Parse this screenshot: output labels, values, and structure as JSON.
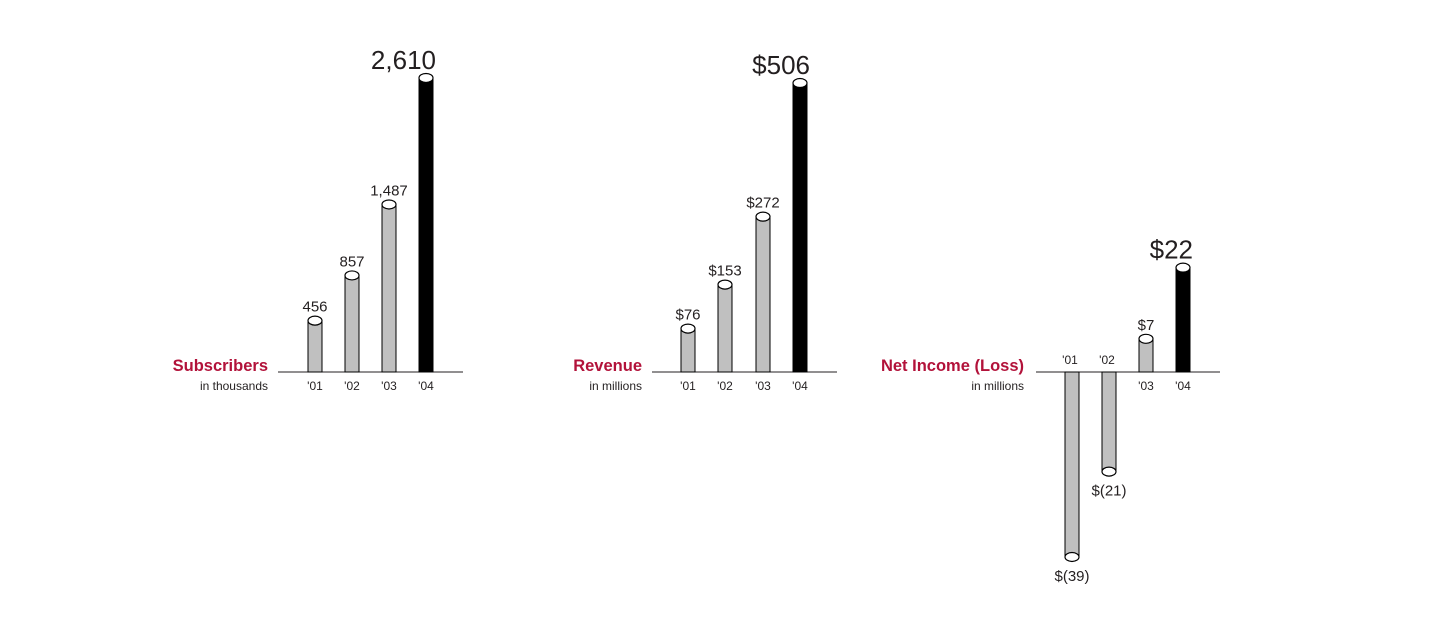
{
  "colors": {
    "title": "#b2123a",
    "bar_past": "#c0c0c0",
    "bar_current": "#000000",
    "text": "#231f20",
    "axis": "#231f20"
  },
  "chart_data": [
    {
      "type": "bar",
      "title": "Subscribers",
      "subtitle": "in thousands",
      "categories": [
        "'01",
        "'02",
        "'03",
        "'04"
      ],
      "values": [
        456,
        857,
        1487,
        2610
      ],
      "value_labels": [
        "456",
        "857",
        "1,487",
        "2,610"
      ],
      "highlight_last": true
    },
    {
      "type": "bar",
      "title": "Revenue",
      "subtitle": "in millions",
      "categories": [
        "'01",
        "'02",
        "'03",
        "'04"
      ],
      "values": [
        76,
        153,
        272,
        506
      ],
      "value_labels": [
        "$76",
        "$153",
        "$272",
        "$506"
      ],
      "highlight_last": true
    },
    {
      "type": "bar",
      "title": "Net Income (Loss)",
      "subtitle": "in millions",
      "categories": [
        "'01",
        "'02",
        "'03",
        "'04"
      ],
      "values": [
        -39,
        -21,
        7,
        22
      ],
      "value_labels": [
        "$(39)",
        "$(21)",
        "$7",
        "$22"
      ],
      "highlight_last": true
    }
  ]
}
